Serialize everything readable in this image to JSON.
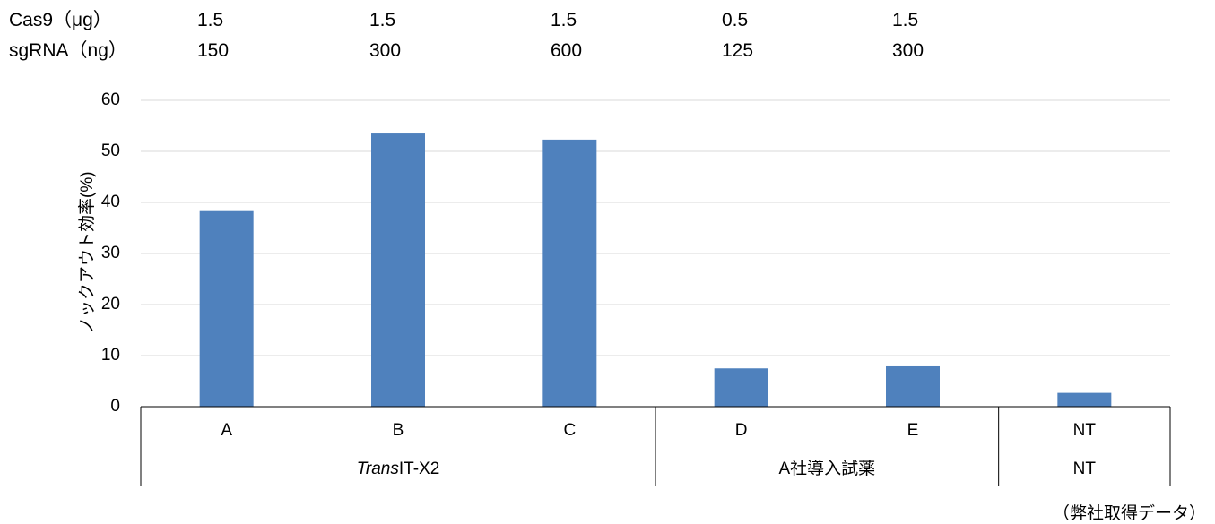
{
  "header_rows": [
    {
      "label": "Cas9（μg）",
      "values": [
        "1.5",
        "1.5",
        "1.5",
        "0.5",
        "1.5"
      ]
    },
    {
      "label": "sgRNA（ng）",
      "values": [
        "150",
        "300",
        "600",
        "125",
        "300"
      ]
    }
  ],
  "footnote": "（弊社取得データ）",
  "chart_data": {
    "type": "bar",
    "categories": [
      "A",
      "B",
      "C",
      "D",
      "E",
      "NT"
    ],
    "values": [
      38.3,
      53.5,
      52.3,
      7.5,
      7.9,
      2.7
    ],
    "groups": [
      {
        "label": "TransIT-X2",
        "italic_part": "Trans",
        "rest": "IT-X2",
        "members": [
          "A",
          "B",
          "C"
        ]
      },
      {
        "label": "A社導入試薬",
        "members": [
          "D",
          "E"
        ]
      },
      {
        "label": "NT",
        "members": [
          "NT"
        ]
      }
    ],
    "ylabel": "ノックアウト効率(%)",
    "xlabel": "",
    "ylim": [
      0,
      60
    ],
    "yticks": [
      0,
      10,
      20,
      30,
      40,
      50,
      60
    ],
    "grid": true,
    "bar_color": "#4f81bd",
    "grid_color": "#d9d9d9"
  }
}
